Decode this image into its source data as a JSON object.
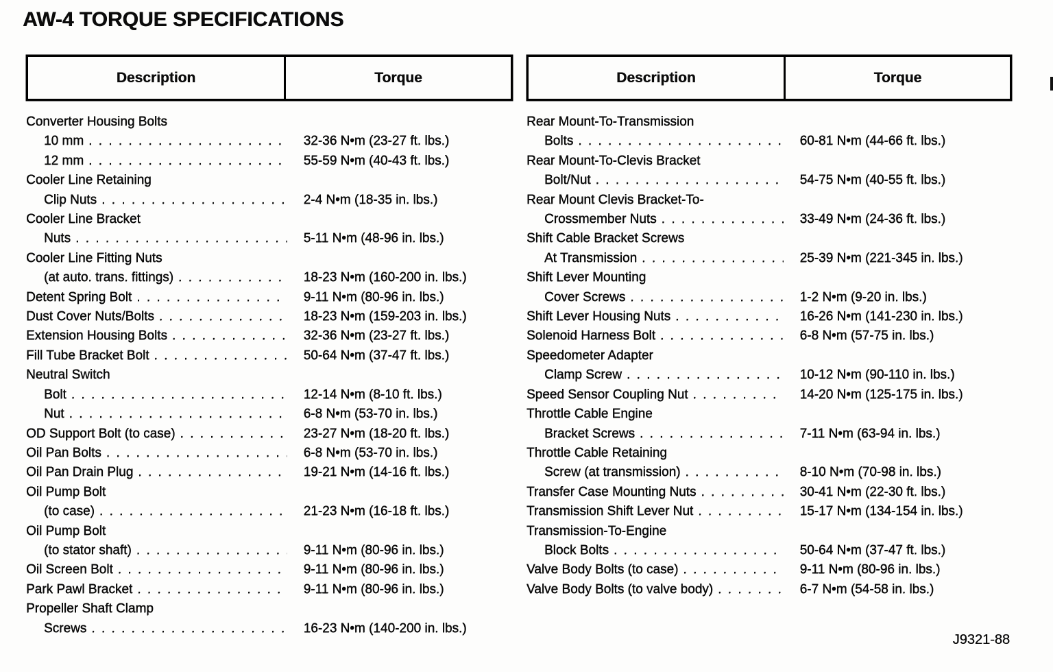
{
  "page": {
    "title": "AW-4 TORQUE SPECIFICATIONS",
    "figure_ref": "J9321-88"
  },
  "tables": [
    {
      "headers": {
        "description": "Description",
        "torque": "Torque"
      },
      "rows": [
        {
          "text": "Converter Housing Bolts",
          "indent": 0,
          "torque": ""
        },
        {
          "text": "10 mm",
          "indent": 1,
          "torque": "32-36 N•m (23-27 ft. lbs.)"
        },
        {
          "text": "12 mm",
          "indent": 1,
          "torque": "55-59 N•m (40-43 ft. lbs.)"
        },
        {
          "text": "Cooler Line Retaining",
          "indent": 0,
          "torque": ""
        },
        {
          "text": "Clip Nuts",
          "indent": 1,
          "torque": "2-4 N•m (18-35 in. lbs.)"
        },
        {
          "text": "Cooler Line Bracket",
          "indent": 0,
          "torque": ""
        },
        {
          "text": "Nuts",
          "indent": 1,
          "torque": "5-11 N•m (48-96 in. lbs.)"
        },
        {
          "text": "Cooler Line Fitting Nuts",
          "indent": 0,
          "torque": ""
        },
        {
          "text": "(at auto. trans. fittings)",
          "indent": 1,
          "torque": "18-23 N•m (160-200 in. lbs.)"
        },
        {
          "text": "Detent Spring Bolt",
          "indent": 0,
          "torque": "9-11 N•m (80-96 in. lbs.)"
        },
        {
          "text": "Dust Cover Nuts/Bolts",
          "indent": 0,
          "torque": "18-23 N•m (159-203 in. lbs.)"
        },
        {
          "text": "Extension Housing Bolts",
          "indent": 0,
          "torque": "32-36 N•m (23-27 ft. lbs.)"
        },
        {
          "text": "Fill Tube Bracket Bolt",
          "indent": 0,
          "torque": "50-64 N•m (37-47 ft. lbs.)"
        },
        {
          "text": "Neutral Switch",
          "indent": 0,
          "torque": ""
        },
        {
          "text": "Bolt",
          "indent": 1,
          "torque": "12-14 N•m (8-10 ft. lbs.)"
        },
        {
          "text": "Nut",
          "indent": 1,
          "torque": "6-8 N•m (53-70 in. lbs.)"
        },
        {
          "text": "OD Support Bolt (to case)",
          "indent": 0,
          "torque": "23-27 N•m (18-20 ft. lbs.)"
        },
        {
          "text": "Oil Pan Bolts",
          "indent": 0,
          "torque": "6-8 N•m (53-70 in. lbs.)"
        },
        {
          "text": "Oil Pan Drain Plug",
          "indent": 0,
          "torque": "19-21 N•m (14-16 ft. lbs.)"
        },
        {
          "text": "Oil Pump Bolt",
          "indent": 0,
          "torque": ""
        },
        {
          "text": "(to case)",
          "indent": 1,
          "torque": "21-23 N•m (16-18 ft. lbs.)"
        },
        {
          "text": "Oil Pump Bolt",
          "indent": 0,
          "torque": ""
        },
        {
          "text": "(to stator shaft)",
          "indent": 1,
          "torque": "9-11 N•m (80-96 in. lbs.)"
        },
        {
          "text": "Oil Screen Bolt",
          "indent": 0,
          "torque": "9-11 N•m (80-96 in. lbs.)"
        },
        {
          "text": "Park Pawl Bracket",
          "indent": 0,
          "torque": "9-11 N•m (80-96 in. lbs.)"
        },
        {
          "text": "Propeller Shaft Clamp",
          "indent": 0,
          "torque": ""
        },
        {
          "text": "Screws",
          "indent": 1,
          "torque": "16-23 N•m (140-200 in. lbs.)"
        }
      ]
    },
    {
      "headers": {
        "description": "Description",
        "torque": "Torque"
      },
      "rows": [
        {
          "text": "Rear Mount-To-Transmission",
          "indent": 0,
          "torque": ""
        },
        {
          "text": "Bolts",
          "indent": 1,
          "torque": "60-81 N•m (44-66 ft. lbs.)"
        },
        {
          "text": "Rear Mount-To-Clevis Bracket",
          "indent": 0,
          "torque": ""
        },
        {
          "text": "Bolt/Nut",
          "indent": 1,
          "torque": "54-75 N•m (40-55 ft. lbs.)"
        },
        {
          "text": "Rear Mount Clevis Bracket-To-",
          "indent": 0,
          "torque": ""
        },
        {
          "text": "Crossmember Nuts",
          "indent": 1,
          "torque": "33-49 N•m (24-36 ft. lbs.)"
        },
        {
          "text": "Shift Cable Bracket Screws",
          "indent": 0,
          "torque": ""
        },
        {
          "text": "At Transmission",
          "indent": 1,
          "torque": "25-39 N•m (221-345 in. lbs.)"
        },
        {
          "text": "Shift Lever Mounting",
          "indent": 0,
          "torque": ""
        },
        {
          "text": "Cover Screws",
          "indent": 1,
          "torque": "1-2 N•m (9-20 in. lbs.)"
        },
        {
          "text": "Shift Lever Housing Nuts",
          "indent": 0,
          "torque": "16-26 N•m (141-230 in. lbs.)"
        },
        {
          "text": "Solenoid Harness Bolt",
          "indent": 0,
          "torque": "6-8 N•m (57-75 in. lbs.)"
        },
        {
          "text": "Speedometer Adapter",
          "indent": 0,
          "torque": ""
        },
        {
          "text": "Clamp Screw",
          "indent": 1,
          "torque": "10-12 N•m (90-110 in. lbs.)"
        },
        {
          "text": "Speed Sensor Coupling Nut",
          "indent": 0,
          "torque": "14-20 N•m (125-175 in. lbs.)"
        },
        {
          "text": "Throttle Cable Engine",
          "indent": 0,
          "torque": ""
        },
        {
          "text": "Bracket Screws",
          "indent": 1,
          "torque": "7-11 N•m (63-94 in. lbs.)"
        },
        {
          "text": "Throttle Cable Retaining",
          "indent": 0,
          "torque": ""
        },
        {
          "text": "Screw (at transmission)",
          "indent": 1,
          "torque": "8-10 N•m (70-98 in. lbs.)"
        },
        {
          "text": "Transfer Case Mounting Nuts",
          "indent": 0,
          "torque": "30-41 N•m (22-30 ft. lbs.)"
        },
        {
          "text": "Transmission Shift Lever Nut",
          "indent": 0,
          "torque": "15-17 N•m (134-154 in. lbs.)"
        },
        {
          "text": "Transmission-To-Engine",
          "indent": 0,
          "torque": ""
        },
        {
          "text": "Block Bolts",
          "indent": 1,
          "torque": "50-64 N•m (37-47 ft. lbs.)"
        },
        {
          "text": "Valve Body Bolts (to case)",
          "indent": 0,
          "torque": "9-11 N•m (80-96 in. lbs.)"
        },
        {
          "text": "Valve Body Bolts (to valve body)",
          "indent": 0,
          "torque": "6-7 N•m (54-58 in. lbs.)"
        }
      ]
    }
  ]
}
